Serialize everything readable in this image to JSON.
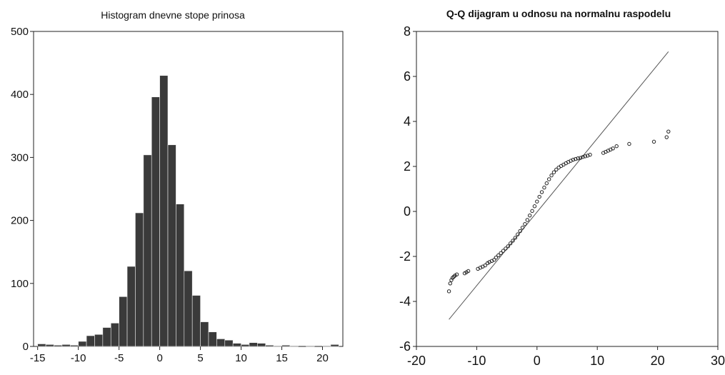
{
  "chart_data": [
    {
      "type": "bar",
      "title": "Histogram dnevne stope prinosa",
      "xlabel": "",
      "ylabel": "",
      "xlim": [
        -15.5,
        22.5
      ],
      "ylim": [
        0,
        500
      ],
      "xticks": [
        -15,
        -10,
        -5,
        0,
        5,
        10,
        15,
        20
      ],
      "yticks": [
        0,
        100,
        200,
        300,
        400,
        500
      ],
      "bin_width": 1,
      "bin_starts": [
        -15,
        -14,
        -13,
        -12,
        -11,
        -10,
        -9,
        -8,
        -7,
        -6,
        -5,
        -4,
        -3,
        -2,
        -1,
        0,
        1,
        2,
        3,
        4,
        5,
        6,
        7,
        8,
        9,
        10,
        11,
        12,
        13,
        14,
        15,
        16,
        17,
        18,
        19,
        20,
        21
      ],
      "values": [
        4,
        3,
        2,
        3,
        2,
        8,
        17,
        19,
        30,
        37,
        79,
        127,
        212,
        304,
        396,
        430,
        320,
        226,
        120,
        81,
        39,
        23,
        12,
        10,
        5,
        3,
        6,
        5,
        2,
        1,
        2,
        1,
        0,
        1,
        0,
        1,
        3
      ],
      "colors": {
        "bar": "#3a3a3a",
        "edge": "#eeeeee",
        "axis": "#222222"
      }
    },
    {
      "type": "scatter",
      "title": "Q-Q dijagram u odnosu na normalnu raspodelu",
      "xlabel": "",
      "ylabel": "",
      "xlim": [
        -20,
        30
      ],
      "ylim": [
        -6,
        8
      ],
      "xticks": [
        -20,
        -10,
        0,
        10,
        20,
        30
      ],
      "yticks": [
        -6,
        -4,
        -2,
        0,
        2,
        4,
        6,
        8
      ],
      "reference_line": {
        "x": [
          -14.6,
          21.8
        ],
        "y": [
          -4.8,
          7.1
        ]
      },
      "points": {
        "x": [
          -14.6,
          -14.4,
          -14.2,
          -14.0,
          -13.8,
          -13.6,
          -13.3,
          -12.0,
          -11.7,
          -11.4,
          -9.8,
          -9.4,
          -9.0,
          -8.6,
          -8.2,
          -7.9,
          -7.5,
          -7.1,
          -6.8,
          -6.4,
          -6.0,
          -5.6,
          -5.2,
          -4.8,
          -4.4,
          -4.0,
          -3.6,
          -3.2,
          -2.8,
          -2.4,
          -2.0,
          -1.6,
          -1.2,
          -0.8,
          -0.4,
          0.0,
          0.4,
          0.8,
          1.2,
          1.6,
          2.0,
          2.4,
          2.8,
          3.2,
          3.6,
          4.0,
          4.4,
          4.8,
          5.2,
          5.6,
          6.0,
          6.4,
          6.8,
          7.2,
          7.6,
          8.0,
          8.4,
          8.8,
          11.0,
          11.4,
          11.8,
          12.2,
          12.6,
          13.2,
          15.3,
          19.4,
          21.5,
          21.8
        ],
        "y": [
          -3.55,
          -3.2,
          -3.05,
          -2.95,
          -2.9,
          -2.85,
          -2.8,
          -2.75,
          -2.7,
          -2.65,
          -2.55,
          -2.5,
          -2.45,
          -2.4,
          -2.3,
          -2.25,
          -2.2,
          -2.15,
          -2.05,
          -1.95,
          -1.85,
          -1.75,
          -1.65,
          -1.55,
          -1.42,
          -1.3,
          -1.17,
          -1.02,
          -0.87,
          -0.72,
          -0.56,
          -0.38,
          -0.18,
          0.02,
          0.23,
          0.44,
          0.65,
          0.86,
          1.06,
          1.25,
          1.43,
          1.6,
          1.74,
          1.86,
          1.95,
          2.02,
          2.08,
          2.14,
          2.2,
          2.25,
          2.3,
          2.33,
          2.36,
          2.38,
          2.42,
          2.45,
          2.48,
          2.52,
          2.6,
          2.65,
          2.7,
          2.75,
          2.8,
          2.9,
          3.0,
          3.1,
          3.3,
          3.55
        ]
      },
      "colors": {
        "point": "#222222",
        "line": "#555555",
        "axis": "#222222"
      }
    }
  ]
}
